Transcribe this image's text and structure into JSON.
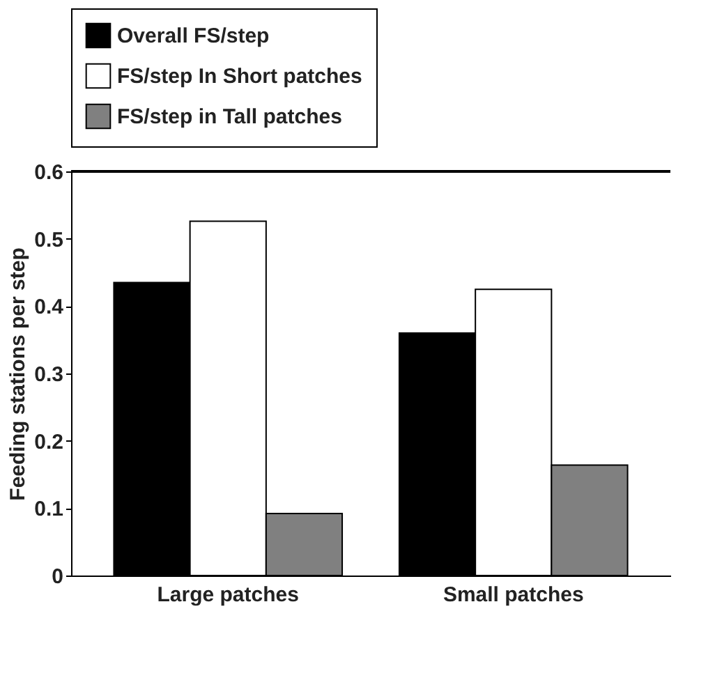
{
  "chart_data": {
    "type": "bar",
    "ylabel": "Feeding stations per step",
    "categories": [
      "Large patches",
      "Small patches"
    ],
    "series": [
      {
        "name": "Overall FS/step",
        "color": "#000000",
        "values": [
          0.435,
          0.36
        ]
      },
      {
        "name": "FS/step In Short patches",
        "color": "#ffffff",
        "values": [
          0.526,
          0.425
        ]
      },
      {
        "name": "FS/step in Tall patches",
        "color": "#808080",
        "values": [
          0.092,
          0.164
        ]
      }
    ],
    "ylim": [
      0,
      0.6
    ],
    "yticks": [
      0,
      0.1,
      0.2,
      0.3,
      0.4,
      0.5,
      0.6
    ],
    "grid": false,
    "legend": "top"
  }
}
